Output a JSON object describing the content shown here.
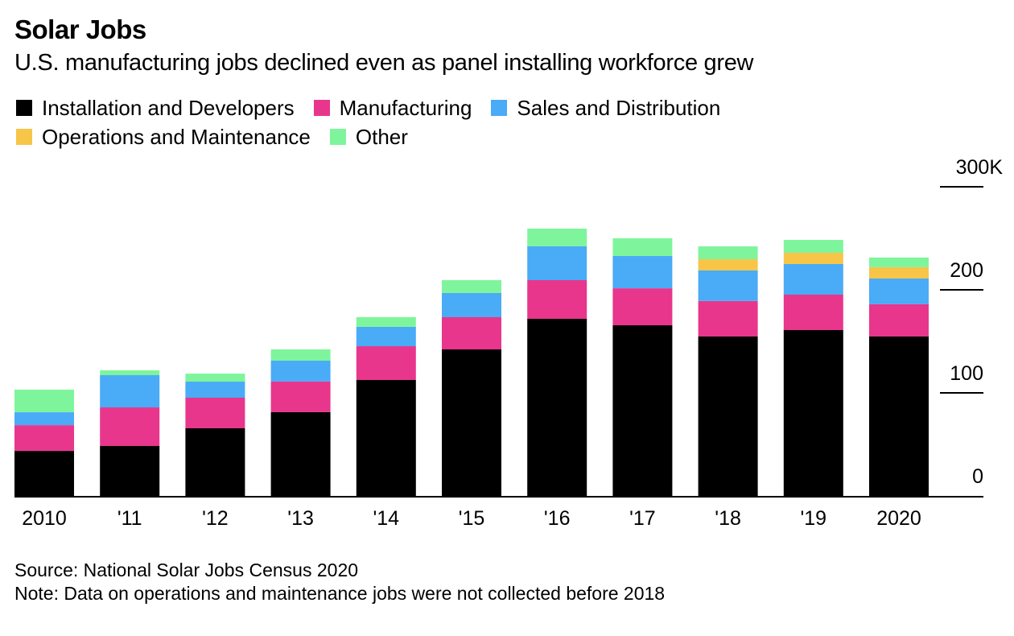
{
  "header": {
    "title": "Solar Jobs",
    "subtitle": "U.S. manufacturing jobs declined even as panel installing workforce grew"
  },
  "legend": [
    {
      "label": "Installation and Developers",
      "color": "#000000"
    },
    {
      "label": "Manufacturing",
      "color": "#e8368c"
    },
    {
      "label": "Sales and Distribution",
      "color": "#4aabf7"
    },
    {
      "label": "Operations and Maintenance",
      "color": "#f7c548"
    },
    {
      "label": "Other",
      "color": "#7ef59c"
    }
  ],
  "footer": {
    "source": "Source: National Solar Jobs Census 2020",
    "note": "Note: Data on operations and maintenance jobs were not collected before 2018"
  },
  "chart_data": {
    "type": "bar",
    "stacked": true,
    "title": "Solar Jobs",
    "subtitle": "U.S. manufacturing jobs declined even as panel installing workforce grew",
    "xlabel": "",
    "ylabel": "",
    "units": "thousands of jobs",
    "categories": [
      "2010",
      "'11",
      "'12",
      "'13",
      "'14",
      "'15",
      "'16",
      "'17",
      "'18",
      "'19",
      "2020"
    ],
    "series": [
      {
        "name": "Installation and Developers",
        "color": "#000000",
        "values": [
          43.7,
          48.4,
          65.6,
          81.3,
          112.5,
          142.2,
          171.9,
          165.6,
          154.7,
          160.9,
          154.7
        ]
      },
      {
        "name": "Manufacturing",
        "color": "#e8368c",
        "values": [
          25.0,
          37.5,
          29.7,
          29.7,
          32.8,
          31.3,
          37.5,
          35.9,
          34.4,
          34.4,
          31.3
        ]
      },
      {
        "name": "Sales and Distribution",
        "color": "#4aabf7",
        "values": [
          12.5,
          31.3,
          15.6,
          20.3,
          18.8,
          23.4,
          32.8,
          31.3,
          29.7,
          29.7,
          25.0
        ]
      },
      {
        "name": "Operations and Maintenance",
        "color": "#f7c548",
        "values": [
          0,
          0,
          0,
          0,
          0,
          0,
          0,
          0,
          10.9,
          10.9,
          10.9
        ]
      },
      {
        "name": "Other",
        "color": "#7ef59c",
        "values": [
          21.9,
          4.7,
          7.8,
          10.9,
          9.4,
          12.5,
          17.2,
          17.2,
          12.5,
          12.5,
          9.4
        ]
      }
    ],
    "y_ticks": [
      {
        "value": 0,
        "label": "0"
      },
      {
        "value": 100,
        "label": "100"
      },
      {
        "value": 200,
        "label": "200"
      },
      {
        "value": 300,
        "label": "300K"
      }
    ],
    "ylim": [
      0,
      300
    ],
    "y_axis_side": "right",
    "grid": false,
    "legend_position": "top-left",
    "source": "Source: National Solar Jobs Census 2020",
    "note": "Note: Data on operations and maintenance jobs were not collected before 2018"
  }
}
